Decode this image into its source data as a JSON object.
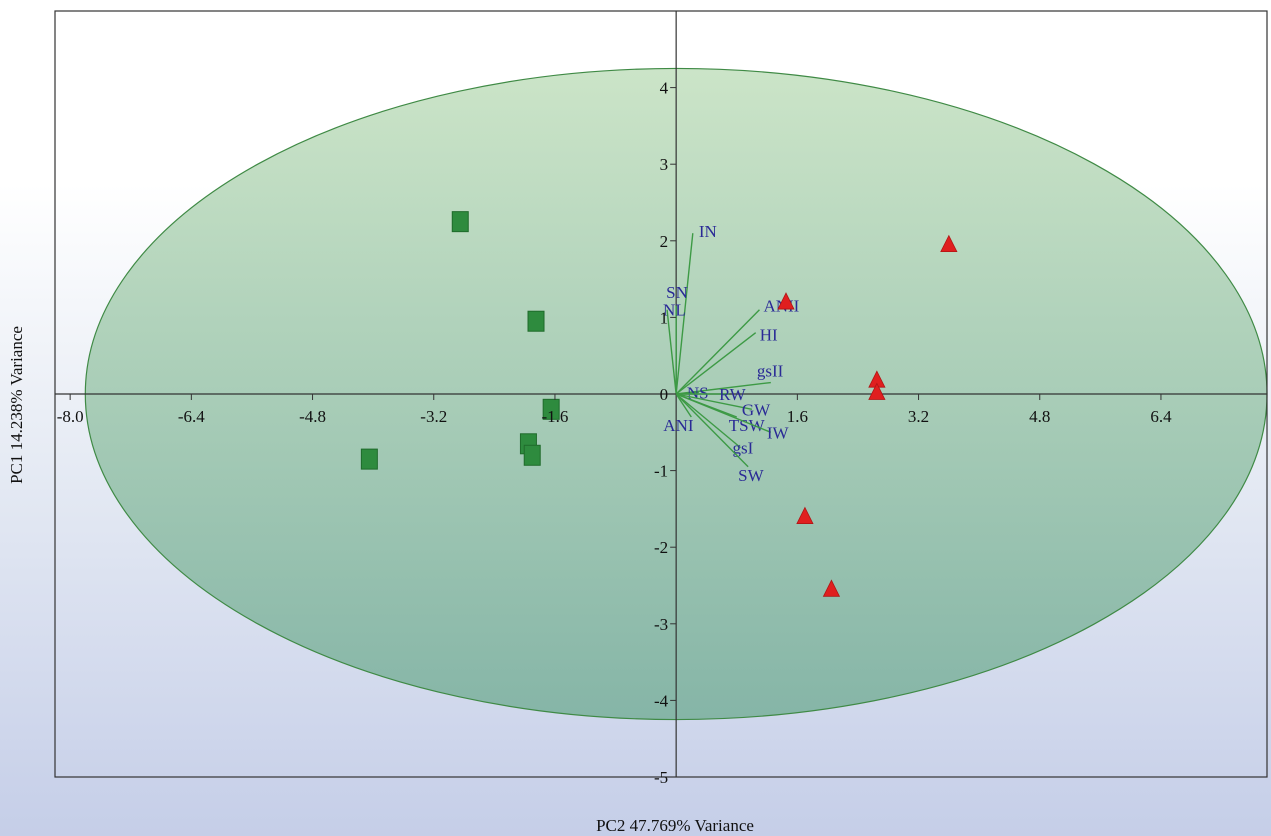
{
  "chart_data": {
    "type": "scatter",
    "xlabel": "PC2 47.769% Variance",
    "ylabel": "PC1 14.238% Variance",
    "xlim": [
      -8.2,
      7.8
    ],
    "ylim": [
      -5.0,
      5.0
    ],
    "x_ticks": [
      "-8.0",
      "-6.4",
      "-4.8",
      "-3.2",
      "-1.6",
      "1.6",
      "3.2",
      "4.8",
      "6.4"
    ],
    "x_tick_values": [
      -8.0,
      -6.4,
      -4.8,
      -3.2,
      -1.6,
      1.6,
      3.2,
      4.8,
      6.4
    ],
    "y_ticks": [
      "4",
      "3",
      "2",
      "1",
      "0",
      "-1",
      "-2",
      "-3",
      "-4",
      "-5"
    ],
    "y_tick_values": [
      4,
      3,
      2,
      1,
      0,
      -1,
      -2,
      -3,
      -4,
      -5
    ],
    "ellipse": {
      "cx": 0.0,
      "cy": 0.0,
      "rx": 7.8,
      "ry": 4.25,
      "fill": "#7bb57d",
      "stroke": "#3f8a45"
    },
    "series": [
      {
        "marker": "square",
        "color": "#2e8b3e",
        "points": [
          [
            -2.85,
            2.25
          ],
          [
            -1.85,
            0.95
          ],
          [
            -4.05,
            -0.85
          ],
          [
            -1.95,
            -0.65
          ],
          [
            -1.9,
            -0.8
          ],
          [
            -1.65,
            -0.2
          ]
        ]
      },
      {
        "marker": "triangle",
        "color": "#e01f1f",
        "points": [
          [
            1.45,
            1.2
          ],
          [
            3.6,
            1.95
          ],
          [
            2.65,
            0.18
          ],
          [
            2.65,
            0.02
          ],
          [
            1.7,
            -1.6
          ],
          [
            2.05,
            -2.55
          ]
        ]
      }
    ],
    "loadings": [
      {
        "label": "IN",
        "x": 0.22,
        "y": 2.1
      },
      {
        "label": "SN",
        "x": 0.0,
        "y": 1.15
      },
      {
        "label": "NL",
        "x": -0.12,
        "y": 1.1
      },
      {
        "label": "ANII",
        "x": 1.1,
        "y": 1.1
      },
      {
        "label": "HI",
        "x": 1.05,
        "y": 0.8
      },
      {
        "label": "gsII",
        "x": 1.25,
        "y": 0.15
      },
      {
        "label": "NS",
        "x": 0.3,
        "y": 0.02
      },
      {
        "label": "RW",
        "x": 0.7,
        "y": 0.0
      },
      {
        "label": "GW",
        "x": 1.0,
        "y": -0.2
      },
      {
        "label": "ANI",
        "x": 0.2,
        "y": -0.3
      },
      {
        "label": "TSW",
        "x": 0.8,
        "y": -0.3
      },
      {
        "label": "IW",
        "x": 1.25,
        "y": -0.5
      },
      {
        "label": "gsI",
        "x": 0.85,
        "y": -0.7
      },
      {
        "label": "SW",
        "x": 0.95,
        "y": -0.95
      }
    ]
  }
}
